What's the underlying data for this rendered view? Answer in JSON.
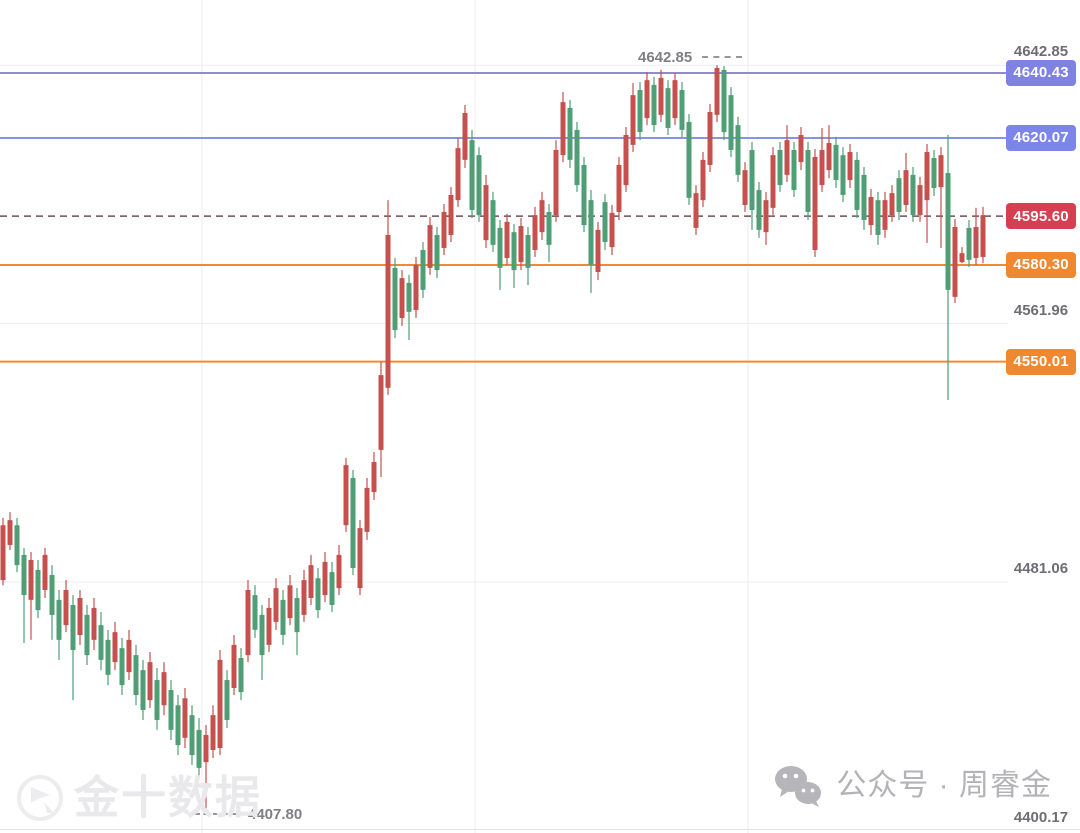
{
  "chart_data": {
    "type": "candlestick",
    "convention": "chinese-red-up-green-down",
    "grid": true,
    "y_axis_labels": [
      "4642.85",
      "4561.96",
      "4481.06",
      "4400.17"
    ],
    "price_lines": [
      {
        "label": "4640.43",
        "value": 4640.43,
        "style": "solid",
        "line_color": "#8f8cc8",
        "badge_color": "#7f82e3"
      },
      {
        "label": "4620.07",
        "value": 4620.07,
        "style": "solid",
        "line_color": "#8793e6",
        "badge_color": "#7b85ea"
      },
      {
        "label": "4595.60",
        "value": 4595.6,
        "style": "dashed",
        "line_color": "#6b4f55",
        "badge_color": "#d63e52",
        "role": "last-price"
      },
      {
        "label": "4580.30",
        "value": 4580.3,
        "style": "solid",
        "line_color": "#ef8a33",
        "badge_color": "#f0882f"
      },
      {
        "label": "4550.01",
        "value": 4550.01,
        "style": "solid",
        "line_color": "#ef8a33",
        "badge_color": "#f0882f"
      }
    ],
    "annotations": {
      "high_label": "4642.85",
      "low_label": "4407.80"
    },
    "colors": {
      "up": "#c5504e",
      "down": "#4f9e76",
      "gridline": "#ededf2"
    },
    "candles_format": [
      "open",
      "high",
      "low",
      "close"
    ],
    "candles": [
      [
        4481.6,
        4501.1,
        4480.0,
        4498.8
      ],
      [
        4492.6,
        4502.9,
        4491.0,
        4500.4
      ],
      [
        4498.8,
        4501.1,
        4484.1,
        4486.3
      ],
      [
        4489.5,
        4491.7,
        4461.9,
        4476.9
      ],
      [
        4475.4,
        4490.4,
        4462.9,
        4487.9
      ],
      [
        4484.8,
        4487.9,
        4469.7,
        4472.2
      ],
      [
        4478.5,
        4491.7,
        4476.0,
        4489.5
      ],
      [
        4483.2,
        4486.3,
        4462.9,
        4470.7
      ],
      [
        4475.4,
        4478.5,
        4456.6,
        4462.9
      ],
      [
        4467.5,
        4481.6,
        4465.3,
        4478.5
      ],
      [
        4473.8,
        4476.9,
        4444.0,
        4459.7
      ],
      [
        4464.4,
        4478.5,
        4461.3,
        4476.0
      ],
      [
        4470.7,
        4473.8,
        4455.0,
        4458.1
      ],
      [
        4462.9,
        4476.0,
        4459.7,
        4472.9
      ],
      [
        4467.5,
        4471.6,
        4453.4,
        4456.6
      ],
      [
        4462.9,
        4466.0,
        4448.7,
        4451.9
      ],
      [
        4455.9,
        4468.5,
        4453.4,
        4465.3
      ],
      [
        4460.3,
        4463.5,
        4445.6,
        4448.7
      ],
      [
        4452.8,
        4466.0,
        4450.3,
        4462.9
      ],
      [
        4458.1,
        4461.3,
        4442.4,
        4445.6
      ],
      [
        4453.4,
        4456.6,
        4437.8,
        4440.9
      ],
      [
        4444.0,
        4459.1,
        4441.5,
        4455.9
      ],
      [
        4450.3,
        4454.1,
        4434.7,
        4437.8
      ],
      [
        4442.4,
        4455.9,
        4439.3,
        4452.8
      ],
      [
        4447.2,
        4450.3,
        4431.5,
        4434.7
      ],
      [
        4442.4,
        4445.6,
        4426.8,
        4429.9
      ],
      [
        4432.2,
        4447.8,
        4429.0,
        4444.6
      ],
      [
        4439.3,
        4442.4,
        4423.7,
        4426.8
      ],
      [
        4434.7,
        4438.4,
        4419.6,
        4422.8
      ],
      [
        4424.6,
        4436.2,
        4408.0,
        4433.1
      ],
      [
        4428.4,
        4442.4,
        4425.9,
        4439.3
      ],
      [
        4429.0,
        4459.7,
        4426.8,
        4456.6
      ],
      [
        4450.3,
        4453.4,
        4435.3,
        4437.8
      ],
      [
        4447.8,
        4464.4,
        4445.6,
        4461.3
      ],
      [
        4457.2,
        4460.3,
        4444.0,
        4446.5
      ],
      [
        4458.1,
        4481.6,
        4455.9,
        4478.5
      ],
      [
        4476.9,
        4480.0,
        4463.5,
        4466.0
      ],
      [
        4470.7,
        4473.8,
        4450.3,
        4458.1
      ],
      [
        4461.3,
        4476.0,
        4459.1,
        4472.9
      ],
      [
        4468.5,
        4482.2,
        4466.0,
        4479.1
      ],
      [
        4475.4,
        4478.5,
        4461.3,
        4464.4
      ],
      [
        4469.7,
        4483.2,
        4467.5,
        4480.0
      ],
      [
        4476.0,
        4479.1,
        4458.1,
        4465.3
      ],
      [
        4470.7,
        4484.8,
        4468.5,
        4481.6
      ],
      [
        4476.0,
        4489.5,
        4473.8,
        4486.3
      ],
      [
        4482.2,
        4485.4,
        4469.7,
        4472.2
      ],
      [
        4476.9,
        4490.4,
        4474.7,
        4487.3
      ],
      [
        4484.1,
        4487.3,
        4471.6,
        4473.8
      ],
      [
        4479.1,
        4492.6,
        4476.9,
        4489.5
      ],
      [
        4498.8,
        4519.9,
        4496.7,
        4517.6
      ],
      [
        4513.6,
        4516.1,
        4483.2,
        4485.4
      ],
      [
        4479.1,
        4500.4,
        4476.9,
        4497.9
      ],
      [
        4496.7,
        4513.6,
        4494.2,
        4510.5
      ],
      [
        4509.2,
        4521.7,
        4506.7,
        4518.6
      ],
      [
        4522.4,
        4549.9,
        4513.9,
        4545.8
      ],
      [
        4541.8,
        4600.6,
        4539.6,
        4589.7
      ],
      [
        4579.4,
        4582.5,
        4557.4,
        4559.9
      ],
      [
        4563.7,
        4578.7,
        4561.2,
        4576.2
      ],
      [
        4574.7,
        4577.2,
        4556.8,
        4565.6
      ],
      [
        4566.2,
        4582.8,
        4563.7,
        4580.3
      ],
      [
        4585.0,
        4587.5,
        4570.0,
        4572.5
      ],
      [
        4579.4,
        4595.3,
        4577.2,
        4592.8
      ],
      [
        4589.7,
        4592.2,
        4576.2,
        4578.7
      ],
      [
        4585.6,
        4599.4,
        4583.4,
        4596.9
      ],
      [
        4589.7,
        4604.7,
        4587.5,
        4602.2
      ],
      [
        4600.6,
        4620.1,
        4598.5,
        4616.9
      ],
      [
        4613.2,
        4630.4,
        4610.7,
        4627.9
      ],
      [
        4619.4,
        4622.6,
        4595.0,
        4597.5
      ],
      [
        4614.7,
        4617.2,
        4593.8,
        4595.9
      ],
      [
        4588.1,
        4608.5,
        4585.6,
        4605.3
      ],
      [
        4600.6,
        4603.2,
        4584.4,
        4586.6
      ],
      [
        4591.9,
        4594.4,
        4572.5,
        4579.4
      ],
      [
        4582.5,
        4596.3,
        4580.3,
        4593.8
      ],
      [
        4590.6,
        4593.1,
        4573.1,
        4578.7
      ],
      [
        4581.2,
        4595.0,
        4578.7,
        4592.5
      ],
      [
        4589.7,
        4592.2,
        4574.0,
        4579.4
      ],
      [
        4585.0,
        4598.5,
        4582.8,
        4595.9
      ],
      [
        4590.6,
        4603.2,
        4588.1,
        4600.6
      ],
      [
        4596.9,
        4599.4,
        4581.2,
        4586.6
      ],
      [
        4595.9,
        4619.4,
        4593.8,
        4616.3
      ],
      [
        4614.7,
        4634.5,
        4612.5,
        4631.3
      ],
      [
        4629.5,
        4632.0,
        4610.7,
        4613.2
      ],
      [
        4622.6,
        4625.1,
        4603.2,
        4605.3
      ],
      [
        4611.6,
        4614.1,
        4590.6,
        4592.8
      ],
      [
        4600.6,
        4603.8,
        4571.5,
        4580.3
      ],
      [
        4578.1,
        4593.8,
        4575.6,
        4591.3
      ],
      [
        4600.0,
        4602.5,
        4585.0,
        4587.5
      ],
      [
        4585.9,
        4599.1,
        4583.4,
        4596.6
      ],
      [
        4596.9,
        4614.1,
        4594.4,
        4611.6
      ],
      [
        4605.3,
        4623.5,
        4603.2,
        4621.0
      ],
      [
        4617.9,
        4637.3,
        4615.7,
        4633.5
      ],
      [
        4635.1,
        4637.6,
        4619.4,
        4621.9
      ],
      [
        4626.3,
        4640.7,
        4624.1,
        4638.2
      ],
      [
        4636.7,
        4639.2,
        4621.9,
        4624.1
      ],
      [
        4627.3,
        4641.4,
        4625.1,
        4638.9
      ],
      [
        4635.7,
        4638.2,
        4621.0,
        4623.2
      ],
      [
        4626.3,
        4640.4,
        4624.1,
        4638.2
      ],
      [
        4635.1,
        4637.6,
        4620.4,
        4622.6
      ],
      [
        4625.1,
        4627.6,
        4599.1,
        4601.3
      ],
      [
        4591.9,
        4605.3,
        4589.7,
        4602.8
      ],
      [
        4600.6,
        4615.7,
        4598.5,
        4613.2
      ],
      [
        4611.6,
        4630.7,
        4609.4,
        4628.2
      ],
      [
        4627.3,
        4642.9,
        4625.1,
        4642.0
      ],
      [
        4641.4,
        4642.6,
        4619.4,
        4621.9
      ],
      [
        4633.5,
        4636.0,
        4614.1,
        4616.3
      ],
      [
        4624.1,
        4626.7,
        4606.3,
        4608.5
      ],
      [
        4599.1,
        4612.5,
        4596.9,
        4610.0
      ],
      [
        4616.3,
        4618.8,
        4591.3,
        4597.5
      ],
      [
        4603.8,
        4606.3,
        4588.8,
        4591.3
      ],
      [
        4590.6,
        4603.2,
        4586.6,
        4600.6
      ],
      [
        4598.2,
        4617.2,
        4595.9,
        4614.7
      ],
      [
        4616.3,
        4618.8,
        4603.2,
        4605.3
      ],
      [
        4608.5,
        4624.1,
        4606.3,
        4619.4
      ],
      [
        4616.3,
        4618.8,
        4601.6,
        4603.8
      ],
      [
        4612.5,
        4623.5,
        4610.0,
        4621.0
      ],
      [
        4616.3,
        4618.8,
        4594.4,
        4596.9
      ],
      [
        4585.0,
        4616.6,
        4582.8,
        4614.1
      ],
      [
        4605.3,
        4623.2,
        4603.2,
        4616.3
      ],
      [
        4610.0,
        4624.1,
        4607.5,
        4618.5
      ],
      [
        4617.9,
        4620.4,
        4604.4,
        4606.9
      ],
      [
        4614.7,
        4617.2,
        4600.0,
        4602.2
      ],
      [
        4606.9,
        4618.2,
        4604.4,
        4615.7
      ],
      [
        4613.2,
        4615.7,
        4595.0,
        4597.5
      ],
      [
        4608.5,
        4611.0,
        4591.3,
        4594.4
      ],
      [
        4592.8,
        4604.1,
        4589.7,
        4601.6
      ],
      [
        4600.6,
        4603.2,
        4586.6,
        4589.7
      ],
      [
        4591.3,
        4603.2,
        4588.8,
        4600.6
      ],
      [
        4595.9,
        4605.3,
        4593.8,
        4602.8
      ],
      [
        4607.5,
        4610.0,
        4594.4,
        4596.9
      ],
      [
        4599.1,
        4615.4,
        4596.9,
        4610.0
      ],
      [
        4608.5,
        4611.0,
        4593.8,
        4595.9
      ],
      [
        4595.9,
        4607.9,
        4593.8,
        4605.3
      ],
      [
        4600.6,
        4618.2,
        4587.2,
        4615.7
      ],
      [
        4613.8,
        4616.3,
        4601.9,
        4604.4
      ],
      [
        4604.7,
        4617.2,
        4585.6,
        4614.7
      ],
      [
        4609.1,
        4621.0,
        4538.0,
        4572.5
      ],
      [
        4570.3,
        4594.7,
        4568.4,
        4592.2
      ],
      [
        4581.2,
        4585.9,
        4580.9,
        4584.0
      ],
      [
        4591.9,
        4594.4,
        4579.7,
        4581.9
      ],
      [
        4582.5,
        4598.2,
        4580.3,
        4592.2
      ],
      [
        4582.8,
        4598.5,
        4580.9,
        4595.9
      ]
    ]
  },
  "watermarks": {
    "left_text": "金十数据",
    "right_text": "公众号 · 周睿金"
  }
}
